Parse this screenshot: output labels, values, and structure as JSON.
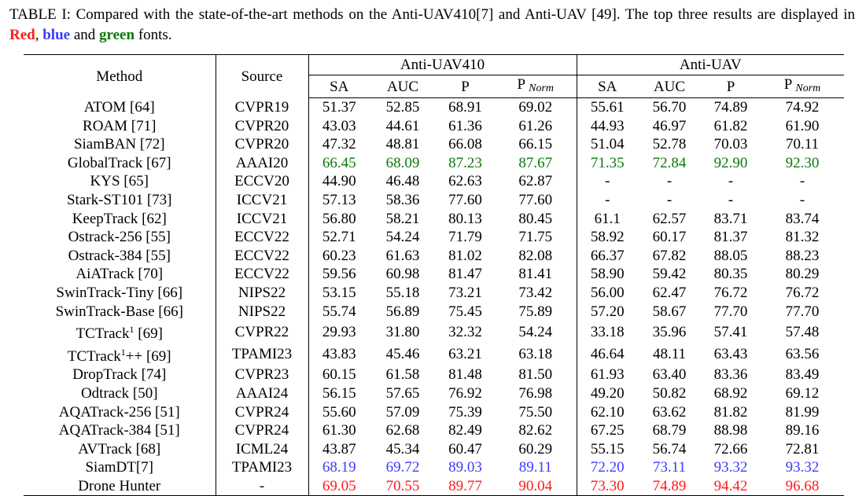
{
  "caption": {
    "part1": "TABLE I: Compared with the state-of-the-art methods on the Anti-UAV410[7] and Anti-UAV [49]. The top three results are displayed in ",
    "red": "Red",
    "sep1": ", ",
    "blue": "blue",
    "sep2": " and ",
    "green": "green",
    "part2": " fonts."
  },
  "table": {
    "col_method": "Method",
    "col_source": "Source",
    "group1": "Anti-UAV410",
    "group2": "Anti-UAV",
    "metrics": [
      "SA",
      "AUC",
      "P",
      "P",
      "SA",
      "AUC",
      "P",
      "P"
    ],
    "norm_sub": "Norm",
    "rows": [
      {
        "method": "ATOM [64]",
        "source": "CVPR19",
        "values": [
          "51.37",
          "52.85",
          "68.91",
          "69.02",
          "55.61",
          "56.70",
          "74.89",
          "74.92"
        ],
        "style": ""
      },
      {
        "method": "ROAM [71]",
        "source": "CVPR20",
        "values": [
          "43.03",
          "44.61",
          "61.36",
          "61.26",
          "44.93",
          "46.97",
          "61.82",
          "61.90"
        ],
        "style": ""
      },
      {
        "method": "SiamBAN [72]",
        "source": "CVPR20",
        "values": [
          "47.32",
          "48.81",
          "66.08",
          "66.15",
          "51.04",
          "52.78",
          "70.03",
          "70.11"
        ],
        "style": ""
      },
      {
        "method": "GlobalTrack [67]",
        "source": "AAAI20",
        "values": [
          "66.45",
          "68.09",
          "87.23",
          "87.67",
          "71.35",
          "72.84",
          "92.90",
          "92.30"
        ],
        "style": "green"
      },
      {
        "method": "KYS [65]",
        "source": "ECCV20",
        "values": [
          "44.90",
          "46.48",
          "62.63",
          "62.87",
          "-",
          "-",
          "-",
          "-"
        ],
        "style": ""
      },
      {
        "method": "Stark-ST101 [73]",
        "source": "ICCV21",
        "values": [
          "57.13",
          "58.36",
          "77.60",
          "77.60",
          "-",
          "-",
          "-",
          "-"
        ],
        "style": ""
      },
      {
        "method": "KeepTrack [62]",
        "source": "ICCV21",
        "values": [
          "56.80",
          "58.21",
          "80.13",
          "80.45",
          "61.1",
          "62.57",
          "83.71",
          "83.74"
        ],
        "style": ""
      },
      {
        "method": "Ostrack-256 [55]",
        "source": "ECCV22",
        "values": [
          "52.71",
          "54.24",
          "71.79",
          "71.75",
          "58.92",
          "60.17",
          "81.37",
          "81.32"
        ],
        "style": ""
      },
      {
        "method": "Ostrack-384 [55]",
        "source": "ECCV22",
        "values": [
          "60.23",
          "61.63",
          "81.02",
          "82.08",
          "66.37",
          "67.82",
          "88.05",
          "88.23"
        ],
        "style": ""
      },
      {
        "method": "AiATrack [70]",
        "source": "ECCV22",
        "values": [
          "59.56",
          "60.98",
          "81.47",
          "81.41",
          "58.90",
          "59.42",
          "80.35",
          "80.29"
        ],
        "style": ""
      },
      {
        "method": "SwinTrack-Tiny [66]",
        "source": "NIPS22",
        "values": [
          "53.15",
          "55.18",
          "73.21",
          "73.42",
          "56.00",
          "62.47",
          "76.72",
          "76.72"
        ],
        "style": ""
      },
      {
        "method": "SwinTrack-Base [66]",
        "source": "NIPS22",
        "values": [
          "55.74",
          "56.89",
          "75.45",
          "75.89",
          "57.20",
          "58.67",
          "77.70",
          "77.70"
        ],
        "style": ""
      },
      {
        "method": "TCTrack",
        "sup": "1",
        "suffix": " [69]",
        "source": "CVPR22",
        "values": [
          "29.93",
          "31.80",
          "32.32",
          "54.24",
          "33.18",
          "35.96",
          "57.41",
          "57.48"
        ],
        "style": ""
      },
      {
        "method": "TCTrack",
        "sup": "1",
        "suffix": "++ [69]",
        "source": "TPAMI23",
        "values": [
          "43.83",
          "45.46",
          "63.21",
          "63.18",
          "46.64",
          "48.11",
          "63.43",
          "63.56"
        ],
        "style": ""
      },
      {
        "method": "DropTrack [74]",
        "source": "CVPR23",
        "values": [
          "60.15",
          "61.58",
          "81.48",
          "81.50",
          "61.93",
          "63.40",
          "83.36",
          "83.49"
        ],
        "style": ""
      },
      {
        "method": "Odtrack [50]",
        "source": "AAAI24",
        "values": [
          "56.15",
          "57.65",
          "76.92",
          "76.98",
          "49.20",
          "50.82",
          "68.92",
          "69.12"
        ],
        "style": ""
      },
      {
        "method": "AQATrack-256 [51]",
        "source": "CVPR24",
        "values": [
          "55.60",
          "57.09",
          "75.39",
          "75.50",
          "62.10",
          "63.62",
          "81.82",
          "81.99"
        ],
        "style": ""
      },
      {
        "method": "AQATrack-384 [51]",
        "source": "CVPR24",
        "values": [
          "61.30",
          "62.68",
          "82.49",
          "82.62",
          "67.25",
          "68.79",
          "88.98",
          "89.16"
        ],
        "style": ""
      },
      {
        "method": "AVTrack [68]",
        "source": "ICML24",
        "values": [
          "43.87",
          "45.34",
          "60.47",
          "60.29",
          "55.15",
          "56.74",
          "72.66",
          "72.81"
        ],
        "style": ""
      },
      {
        "method": "SiamDT[7]",
        "source": "TPAMI23",
        "values": [
          "68.19",
          "69.72",
          "89.03",
          "89.11",
          "72.20",
          "73.11",
          "93.32",
          "93.32"
        ],
        "style": "blue"
      },
      {
        "method": "Drone Hunter",
        "source": "-",
        "values": [
          "69.05",
          "70.55",
          "89.77",
          "90.04",
          "73.30",
          "74.89",
          "94.42",
          "96.68"
        ],
        "style": "red",
        "bold_method": true
      }
    ]
  },
  "colors": {
    "red": "#ff1a1a",
    "blue": "#3b3bff",
    "green": "#0a7a0a"
  }
}
